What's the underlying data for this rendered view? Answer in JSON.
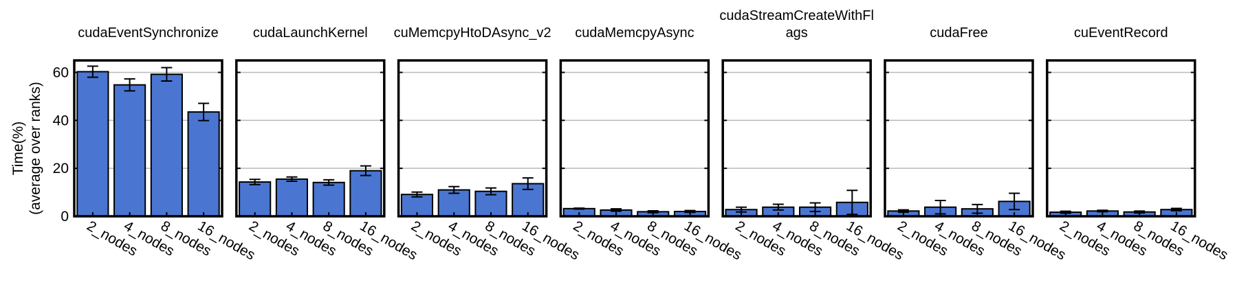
{
  "figure": {
    "ylabel_line1": "Time(%)",
    "ylabel_line2": "(average over ranks)"
  },
  "chart_data": {
    "type": "bar",
    "bar_color": "#4a76d2",
    "ylim": [
      0,
      65
    ],
    "yticks": [
      0,
      20,
      40,
      60
    ],
    "grid": true,
    "categories": [
      "2_nodes",
      "4_nodes",
      "8_nodes",
      "16_nodes"
    ],
    "panels": [
      {
        "title_lines": [
          "cudaEventSynchronize"
        ],
        "values": [
          60.3,
          54.8,
          59.2,
          43.5
        ],
        "errors": [
          2.3,
          2.5,
          2.8,
          3.6
        ]
      },
      {
        "title_lines": [
          "cudaLaunchKernel"
        ],
        "values": [
          14.3,
          15.5,
          14.1,
          19.0
        ],
        "errors": [
          1.1,
          0.9,
          1.1,
          2.0
        ]
      },
      {
        "title_lines": [
          "cuMemcpyHtoDAsync_v2"
        ],
        "values": [
          9.1,
          11.0,
          10.4,
          13.6
        ],
        "errors": [
          1.0,
          1.4,
          1.4,
          2.4
        ]
      },
      {
        "title_lines": [
          "cudaMemcpyAsync"
        ],
        "values": [
          3.2,
          2.6,
          1.9,
          2.0
        ],
        "errors": [
          0.2,
          0.5,
          0.4,
          0.4
        ]
      },
      {
        "title_lines": [
          "cudaStreamCreateWithFl",
          "ags"
        ],
        "values": [
          2.8,
          3.8,
          3.8,
          5.8
        ],
        "errors": [
          1.0,
          1.2,
          1.8,
          5.0
        ]
      },
      {
        "title_lines": [
          "cudaFree"
        ],
        "values": [
          2.2,
          3.8,
          3.1,
          6.2
        ],
        "errors": [
          0.5,
          2.8,
          1.8,
          3.4
        ]
      },
      {
        "title_lines": [
          "cuEventRecord"
        ],
        "values": [
          1.7,
          2.2,
          1.8,
          2.8
        ],
        "errors": [
          0.4,
          0.3,
          0.4,
          0.5
        ]
      }
    ]
  }
}
